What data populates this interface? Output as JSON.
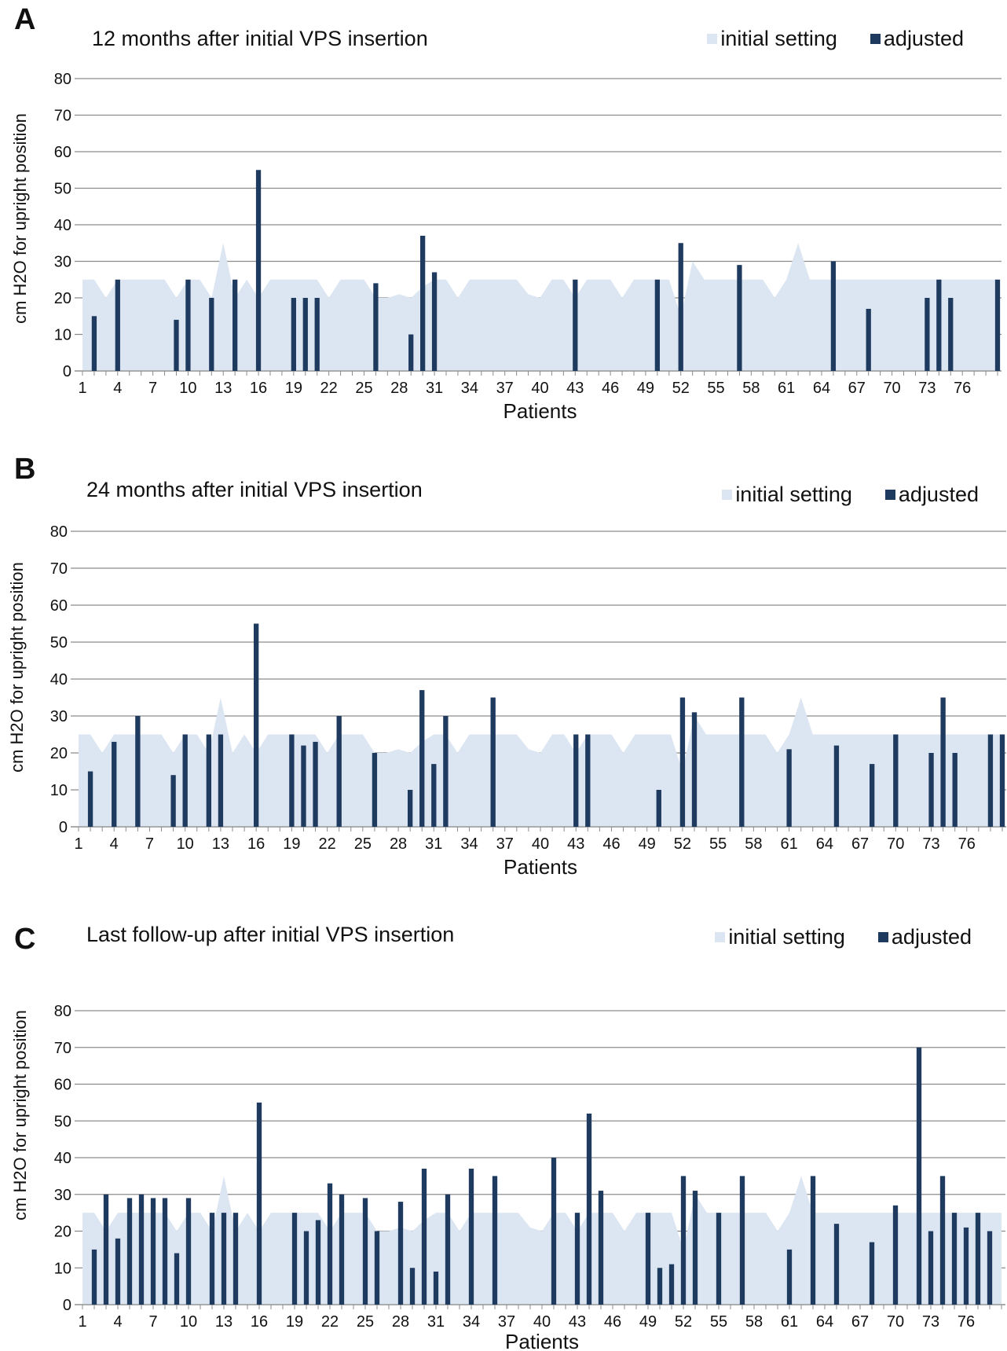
{
  "colors": {
    "initial_setting": "#dce6f2",
    "adjusted": "#1f3a5f",
    "grid": "#8c8c8c"
  },
  "chart_data": [
    {
      "panel": "A",
      "type": "bar",
      "title": "12 months after initial VPS insertion",
      "xlabel": "Patients",
      "ylabel": "cm H2O for upright position",
      "ylim": [
        0,
        80
      ],
      "yticks": [
        0,
        10,
        20,
        30,
        40,
        50,
        60,
        70,
        80
      ],
      "xtick_labels": [
        "1",
        "4",
        "7",
        "10",
        "13",
        "16",
        "19",
        "22",
        "25",
        "28",
        "31",
        "34",
        "37",
        "40",
        "43",
        "46",
        "49",
        "52",
        "55",
        "58",
        "61",
        "64",
        "67",
        "70",
        "73",
        "76"
      ],
      "patients": [
        1,
        2,
        3,
        4,
        5,
        6,
        7,
        8,
        9,
        10,
        11,
        12,
        13,
        14,
        15,
        16,
        17,
        18,
        19,
        20,
        21,
        22,
        23,
        24,
        25,
        26,
        27,
        28,
        29,
        30,
        31,
        32,
        33,
        34,
        35,
        36,
        37,
        38,
        39,
        40,
        41,
        42,
        43,
        44,
        45,
        46,
        47,
        48,
        49,
        50,
        51,
        52,
        53,
        54,
        55,
        56,
        57,
        58,
        59,
        60,
        61,
        62,
        63,
        64,
        65,
        66,
        67,
        68,
        69,
        70,
        71,
        72,
        73,
        74,
        75,
        76,
        77,
        78,
        79
      ],
      "grid": true,
      "legend": {
        "placement": "top-right",
        "entries": [
          "initial setting",
          "adjusted"
        ]
      },
      "series": [
        {
          "name": "initial setting",
          "type": "area",
          "values": [
            25,
            25,
            20,
            25,
            25,
            25,
            25,
            25,
            20,
            25,
            25,
            20,
            35,
            20,
            25,
            20,
            25,
            25,
            25,
            25,
            25,
            20,
            25,
            25,
            25,
            20,
            20,
            21,
            20,
            23,
            25,
            25,
            20,
            25,
            25,
            25,
            25,
            25,
            21,
            20,
            25,
            25,
            20,
            25,
            25,
            25,
            20,
            25,
            25,
            25,
            25,
            15,
            30,
            25,
            25,
            25,
            25,
            25,
            25,
            20,
            25,
            35,
            25,
            25,
            25,
            25,
            25,
            25,
            25,
            25,
            25,
            25,
            25,
            25,
            25,
            25,
            25,
            25,
            25
          ]
        },
        {
          "name": "adjusted",
          "type": "bar",
          "values": [
            null,
            15,
            null,
            25,
            null,
            null,
            null,
            null,
            14,
            25,
            null,
            20,
            null,
            25,
            null,
            55,
            null,
            null,
            20,
            20,
            20,
            null,
            null,
            null,
            null,
            24,
            null,
            null,
            10,
            37,
            27,
            null,
            null,
            null,
            null,
            null,
            null,
            null,
            null,
            null,
            null,
            null,
            25,
            null,
            null,
            null,
            null,
            null,
            null,
            25,
            null,
            35,
            null,
            null,
            null,
            null,
            29,
            null,
            null,
            null,
            null,
            null,
            null,
            null,
            30,
            null,
            null,
            17,
            null,
            null,
            null,
            null,
            20,
            25,
            20,
            null,
            null,
            null,
            25
          ]
        }
      ]
    },
    {
      "panel": "B",
      "type": "bar",
      "title": "24 months after initial VPS insertion",
      "xlabel": "Patients",
      "ylabel": "cm H2O for upright position",
      "ylim": [
        0,
        80
      ],
      "yticks": [
        0,
        10,
        20,
        30,
        40,
        50,
        60,
        70,
        80
      ],
      "xtick_labels": [
        "1",
        "4",
        "7",
        "10",
        "13",
        "16",
        "19",
        "22",
        "25",
        "28",
        "31",
        "34",
        "37",
        "40",
        "43",
        "46",
        "49",
        "52",
        "55",
        "58",
        "61",
        "64",
        "67",
        "70",
        "73",
        "76"
      ],
      "patients": [
        1,
        2,
        3,
        4,
        5,
        6,
        7,
        8,
        9,
        10,
        11,
        12,
        13,
        14,
        15,
        16,
        17,
        18,
        19,
        20,
        21,
        22,
        23,
        24,
        25,
        26,
        27,
        28,
        29,
        30,
        31,
        32,
        33,
        34,
        35,
        36,
        37,
        38,
        39,
        40,
        41,
        42,
        43,
        44,
        45,
        46,
        47,
        48,
        49,
        50,
        51,
        52,
        53,
        54,
        55,
        56,
        57,
        58,
        59,
        60,
        61,
        62,
        63,
        64,
        65,
        66,
        67,
        68,
        69,
        70,
        71,
        72,
        73,
        74,
        75,
        76,
        77,
        78,
        79
      ],
      "grid": true,
      "legend": {
        "placement": "top-right",
        "entries": [
          "initial setting",
          "adjusted"
        ]
      },
      "series": [
        {
          "name": "initial setting",
          "type": "area",
          "values": [
            25,
            25,
            20,
            25,
            25,
            25,
            25,
            25,
            20,
            25,
            25,
            20,
            35,
            20,
            25,
            20,
            25,
            25,
            25,
            25,
            25,
            20,
            25,
            25,
            25,
            20,
            20,
            21,
            20,
            23,
            25,
            25,
            20,
            25,
            25,
            25,
            25,
            25,
            21,
            20,
            25,
            25,
            20,
            25,
            25,
            25,
            20,
            25,
            25,
            25,
            25,
            15,
            30,
            25,
            25,
            25,
            25,
            25,
            25,
            20,
            25,
            35,
            25,
            25,
            25,
            25,
            25,
            25,
            25,
            25,
            25,
            25,
            25,
            25,
            25,
            25,
            25,
            25,
            25
          ]
        },
        {
          "name": "adjusted",
          "type": "bar",
          "values": [
            null,
            15,
            null,
            23,
            null,
            30,
            null,
            null,
            14,
            25,
            null,
            25,
            25,
            null,
            null,
            55,
            null,
            null,
            25,
            22,
            23,
            null,
            30,
            null,
            null,
            20,
            null,
            null,
            10,
            37,
            17,
            30,
            null,
            null,
            null,
            35,
            null,
            null,
            null,
            null,
            null,
            null,
            25,
            25,
            null,
            null,
            null,
            null,
            null,
            10,
            null,
            35,
            31,
            null,
            null,
            null,
            35,
            null,
            null,
            null,
            21,
            null,
            null,
            null,
            22,
            null,
            null,
            17,
            null,
            25,
            null,
            null,
            20,
            35,
            20,
            null,
            null,
            25,
            25
          ]
        }
      ]
    },
    {
      "panel": "C",
      "type": "bar",
      "title": "Last follow-up after initial VPS insertion",
      "xlabel": "Patients",
      "ylabel": "cm H2O for upright position",
      "ylim": [
        0,
        80
      ],
      "yticks": [
        0,
        10,
        20,
        30,
        40,
        50,
        60,
        70,
        80
      ],
      "xtick_labels": [
        "1",
        "4",
        "7",
        "10",
        "13",
        "16",
        "19",
        "22",
        "25",
        "28",
        "31",
        "34",
        "37",
        "40",
        "43",
        "46",
        "49",
        "52",
        "55",
        "58",
        "61",
        "64",
        "67",
        "70",
        "73",
        "76"
      ],
      "patients": [
        1,
        2,
        3,
        4,
        5,
        6,
        7,
        8,
        9,
        10,
        11,
        12,
        13,
        14,
        15,
        16,
        17,
        18,
        19,
        20,
        21,
        22,
        23,
        24,
        25,
        26,
        27,
        28,
        29,
        30,
        31,
        32,
        33,
        34,
        35,
        36,
        37,
        38,
        39,
        40,
        41,
        42,
        43,
        44,
        45,
        46,
        47,
        48,
        49,
        50,
        51,
        52,
        53,
        54,
        55,
        56,
        57,
        58,
        59,
        60,
        61,
        62,
        63,
        64,
        65,
        66,
        67,
        68,
        69,
        70,
        71,
        72,
        73,
        74,
        75,
        76,
        77,
        78,
        79
      ],
      "grid": true,
      "legend": {
        "placement": "top-right",
        "entries": [
          "initial setting",
          "adjusted"
        ]
      },
      "series": [
        {
          "name": "initial setting",
          "type": "area",
          "values": [
            25,
            25,
            20,
            25,
            25,
            25,
            25,
            25,
            20,
            25,
            25,
            20,
            35,
            20,
            25,
            20,
            25,
            25,
            25,
            25,
            25,
            20,
            25,
            25,
            25,
            20,
            20,
            21,
            20,
            23,
            25,
            25,
            20,
            25,
            25,
            25,
            25,
            25,
            21,
            20,
            25,
            25,
            20,
            25,
            25,
            25,
            20,
            25,
            25,
            25,
            25,
            15,
            30,
            25,
            25,
            25,
            25,
            25,
            25,
            20,
            25,
            35,
            25,
            25,
            25,
            25,
            25,
            25,
            25,
            25,
            25,
            25,
            25,
            25,
            25,
            25,
            25,
            25,
            25
          ]
        },
        {
          "name": "adjusted",
          "type": "bar",
          "values": [
            null,
            15,
            30,
            18,
            29,
            30,
            29,
            29,
            14,
            29,
            null,
            25,
            25,
            25,
            null,
            55,
            null,
            null,
            25,
            20,
            23,
            33,
            30,
            null,
            29,
            20,
            null,
            28,
            10,
            37,
            9,
            30,
            null,
            37,
            null,
            35,
            null,
            null,
            null,
            null,
            40,
            null,
            25,
            52,
            31,
            null,
            null,
            null,
            25,
            10,
            11,
            35,
            31,
            null,
            25,
            null,
            35,
            null,
            null,
            null,
            15,
            null,
            35,
            null,
            22,
            null,
            null,
            17,
            null,
            27,
            null,
            70,
            20,
            35,
            25,
            21,
            25,
            20,
            null
          ]
        }
      ]
    }
  ]
}
